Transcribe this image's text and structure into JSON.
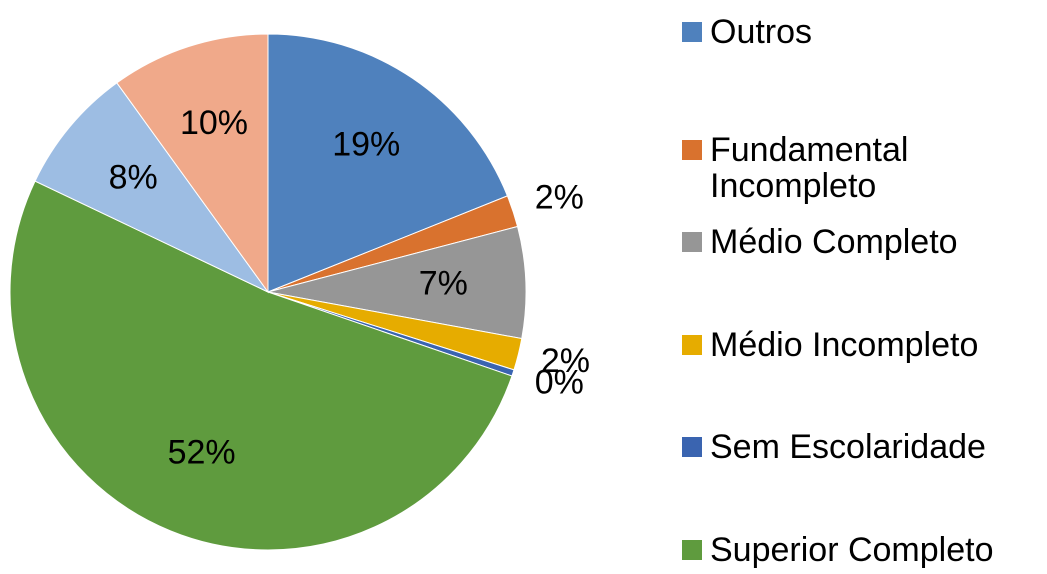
{
  "chart_data": {
    "type": "pie",
    "categories": [
      "Outros",
      "Fundamental Incompleto",
      "Médio Completo",
      "Médio Incompleto",
      "Sem Escolaridade",
      "Superior Completo",
      null,
      null
    ],
    "values": [
      19,
      2,
      7,
      2,
      0.4,
      52,
      8,
      10
    ],
    "value_labels": [
      "19%",
      "2%",
      "7%",
      "2%",
      "0%",
      "52%",
      "8%",
      "10%"
    ],
    "colors": [
      "#4f81bd",
      "#d9722e",
      "#969696",
      "#e6ac00",
      "#3a64b0",
      "#5f9b3e",
      "#9dbde3",
      "#f0a98a"
    ],
    "legend": "right"
  }
}
